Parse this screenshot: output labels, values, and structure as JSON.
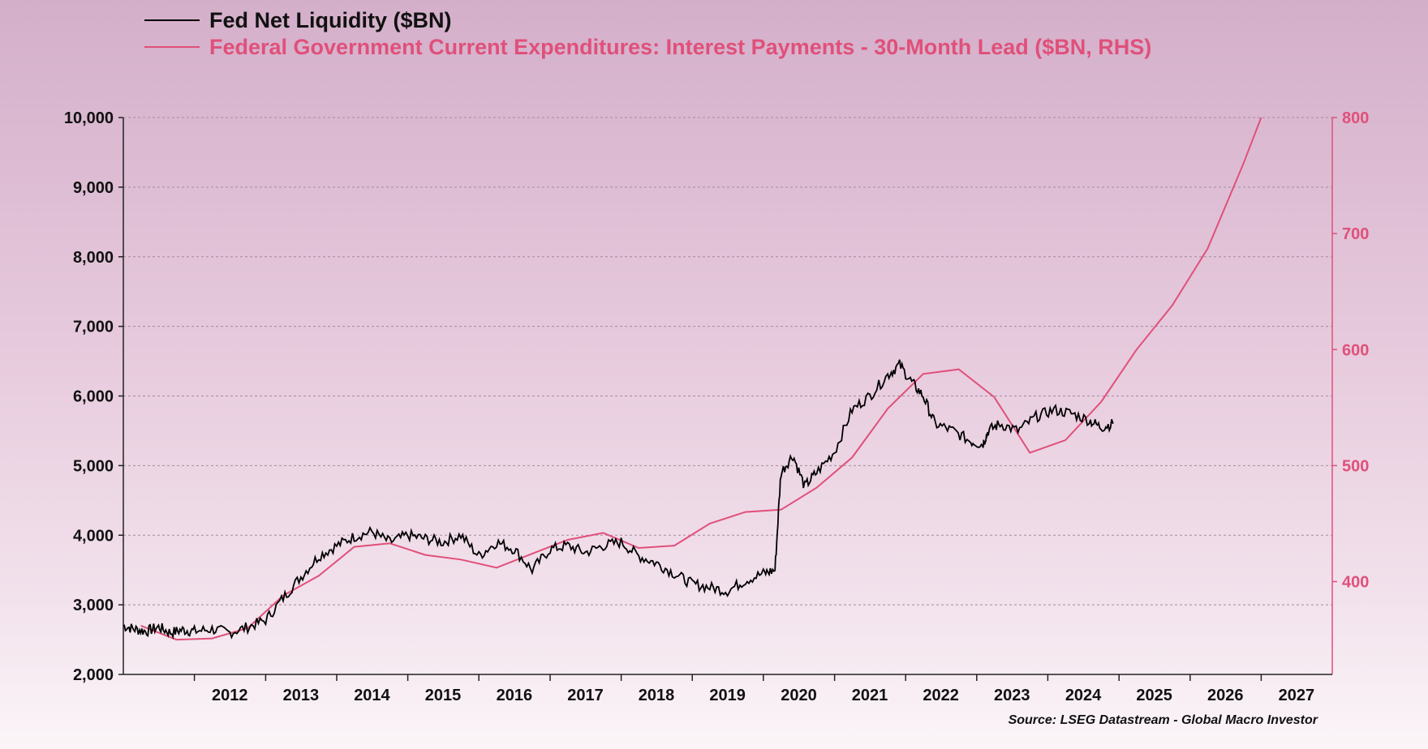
{
  "chart_data": {
    "type": "line",
    "legend": [
      {
        "label": "Fed Net Liquidity ($BN)",
        "color": "#000000"
      },
      {
        "label": "Federal Government Current Expenditures: Interest Payments - 30-Month Lead ($BN, RHS)",
        "color": "#e0507a"
      }
    ],
    "y_left": {
      "min": 2000,
      "max": 10000,
      "ticks": [
        "2,000",
        "3,000",
        "4,000",
        "5,000",
        "6,000",
        "7,000",
        "8,000",
        "9,000",
        "10,000"
      ],
      "color": "#111111"
    },
    "y_right": {
      "min": 320,
      "max": 800,
      "ticks": [
        "400",
        "500",
        "600",
        "700",
        "800"
      ],
      "tick_values": [
        400,
        500,
        600,
        700,
        800
      ],
      "color": "#e0507a"
    },
    "x_axis": {
      "min": "2011-01-01",
      "max": "2028-01-01",
      "tick_labels": [
        "2012",
        "2013",
        "2014",
        "2015",
        "2016",
        "2017",
        "2018",
        "2019",
        "2020",
        "2021",
        "2022",
        "2023",
        "2024",
        "2025",
        "2026",
        "2027"
      ],
      "grid": true
    },
    "series": [
      {
        "name": "Fed Net Liquidity ($BN)",
        "axis": "left",
        "color": "#000000",
        "points": [
          [
            "2011-01-01",
            2700
          ],
          [
            "2011-03-01",
            2650
          ],
          [
            "2011-05-01",
            2620
          ],
          [
            "2011-07-01",
            2680
          ],
          [
            "2011-09-01",
            2600
          ],
          [
            "2011-11-01",
            2640
          ],
          [
            "2012-01-01",
            2620
          ],
          [
            "2012-04-01",
            2650
          ],
          [
            "2012-07-01",
            2600
          ],
          [
            "2012-10-01",
            2680
          ],
          [
            "2013-01-01",
            2780
          ],
          [
            "2013-04-01",
            3100
          ],
          [
            "2013-07-01",
            3400
          ],
          [
            "2013-10-01",
            3700
          ],
          [
            "2014-01-01",
            3850
          ],
          [
            "2014-04-01",
            3980
          ],
          [
            "2014-07-01",
            4050
          ],
          [
            "2014-10-01",
            3900
          ],
          [
            "2015-01-01",
            4000
          ],
          [
            "2015-04-01",
            3950
          ],
          [
            "2015-07-01",
            3900
          ],
          [
            "2015-10-01",
            4000
          ],
          [
            "2016-01-01",
            3700
          ],
          [
            "2016-04-01",
            3900
          ],
          [
            "2016-07-01",
            3800
          ],
          [
            "2016-10-01",
            3500
          ],
          [
            "2017-01-01",
            3800
          ],
          [
            "2017-04-01",
            3850
          ],
          [
            "2017-07-01",
            3750
          ],
          [
            "2017-10-01",
            3850
          ],
          [
            "2018-01-01",
            3900
          ],
          [
            "2018-04-01",
            3700
          ],
          [
            "2018-07-01",
            3600
          ],
          [
            "2018-10-01",
            3450
          ],
          [
            "2019-01-01",
            3300
          ],
          [
            "2019-04-01",
            3250
          ],
          [
            "2019-07-01",
            3200
          ],
          [
            "2019-10-01",
            3350
          ],
          [
            "2020-01-01",
            3450
          ],
          [
            "2020-03-01",
            3500
          ],
          [
            "2020-04-01",
            4900
          ],
          [
            "2020-06-01",
            5150
          ],
          [
            "2020-08-01",
            4700
          ],
          [
            "2020-10-01",
            4900
          ],
          [
            "2021-01-01",
            5200
          ],
          [
            "2021-04-01",
            5800
          ],
          [
            "2021-07-01",
            6000
          ],
          [
            "2021-10-01",
            6300
          ],
          [
            "2021-12-01",
            6450
          ],
          [
            "2022-02-01",
            6200
          ],
          [
            "2022-04-01",
            6000
          ],
          [
            "2022-06-01",
            5600
          ],
          [
            "2022-09-01",
            5500
          ],
          [
            "2022-12-01",
            5350
          ],
          [
            "2023-02-01",
            5300
          ],
          [
            "2023-03-01",
            5500
          ],
          [
            "2023-05-01",
            5600
          ],
          [
            "2023-08-01",
            5500
          ],
          [
            "2023-11-01",
            5700
          ],
          [
            "2024-02-01",
            5800
          ],
          [
            "2024-05-01",
            5750
          ],
          [
            "2024-08-01",
            5650
          ],
          [
            "2024-10-01",
            5550
          ],
          [
            "2024-12-01",
            5600
          ]
        ]
      },
      {
        "name": "Federal Government Current Expenditures: Interest Payments - 30-Month Lead ($BN, RHS)",
        "axis": "right",
        "color": "#e0507a",
        "points": [
          [
            "2011-04-01",
            362
          ],
          [
            "2011-10-01",
            350
          ],
          [
            "2012-04-01",
            351
          ],
          [
            "2012-10-01",
            360
          ],
          [
            "2013-04-01",
            388
          ],
          [
            "2013-10-01",
            405
          ],
          [
            "2014-04-01",
            430
          ],
          [
            "2014-10-01",
            433
          ],
          [
            "2015-04-01",
            423
          ],
          [
            "2015-10-01",
            419
          ],
          [
            "2016-04-01",
            412
          ],
          [
            "2016-10-01",
            424
          ],
          [
            "2017-04-01",
            436
          ],
          [
            "2017-10-01",
            442
          ],
          [
            "2018-04-01",
            429
          ],
          [
            "2018-10-01",
            431
          ],
          [
            "2019-04-01",
            450
          ],
          [
            "2019-10-01",
            460
          ],
          [
            "2020-04-01",
            462
          ],
          [
            "2020-10-01",
            481
          ],
          [
            "2021-04-01",
            507
          ],
          [
            "2021-10-01",
            549
          ],
          [
            "2022-04-01",
            579
          ],
          [
            "2022-10-01",
            583
          ],
          [
            "2023-04-01",
            559
          ],
          [
            "2023-10-01",
            511
          ],
          [
            "2024-04-01",
            522
          ],
          [
            "2024-10-01",
            555
          ],
          [
            "2025-04-01",
            600
          ],
          [
            "2025-10-01",
            638
          ],
          [
            "2026-04-01",
            687
          ],
          [
            "2026-10-01",
            760
          ],
          [
            "2027-01-01",
            800
          ]
        ]
      }
    ],
    "source": "Source: LSEG Datastream - Global Macro Investor"
  }
}
